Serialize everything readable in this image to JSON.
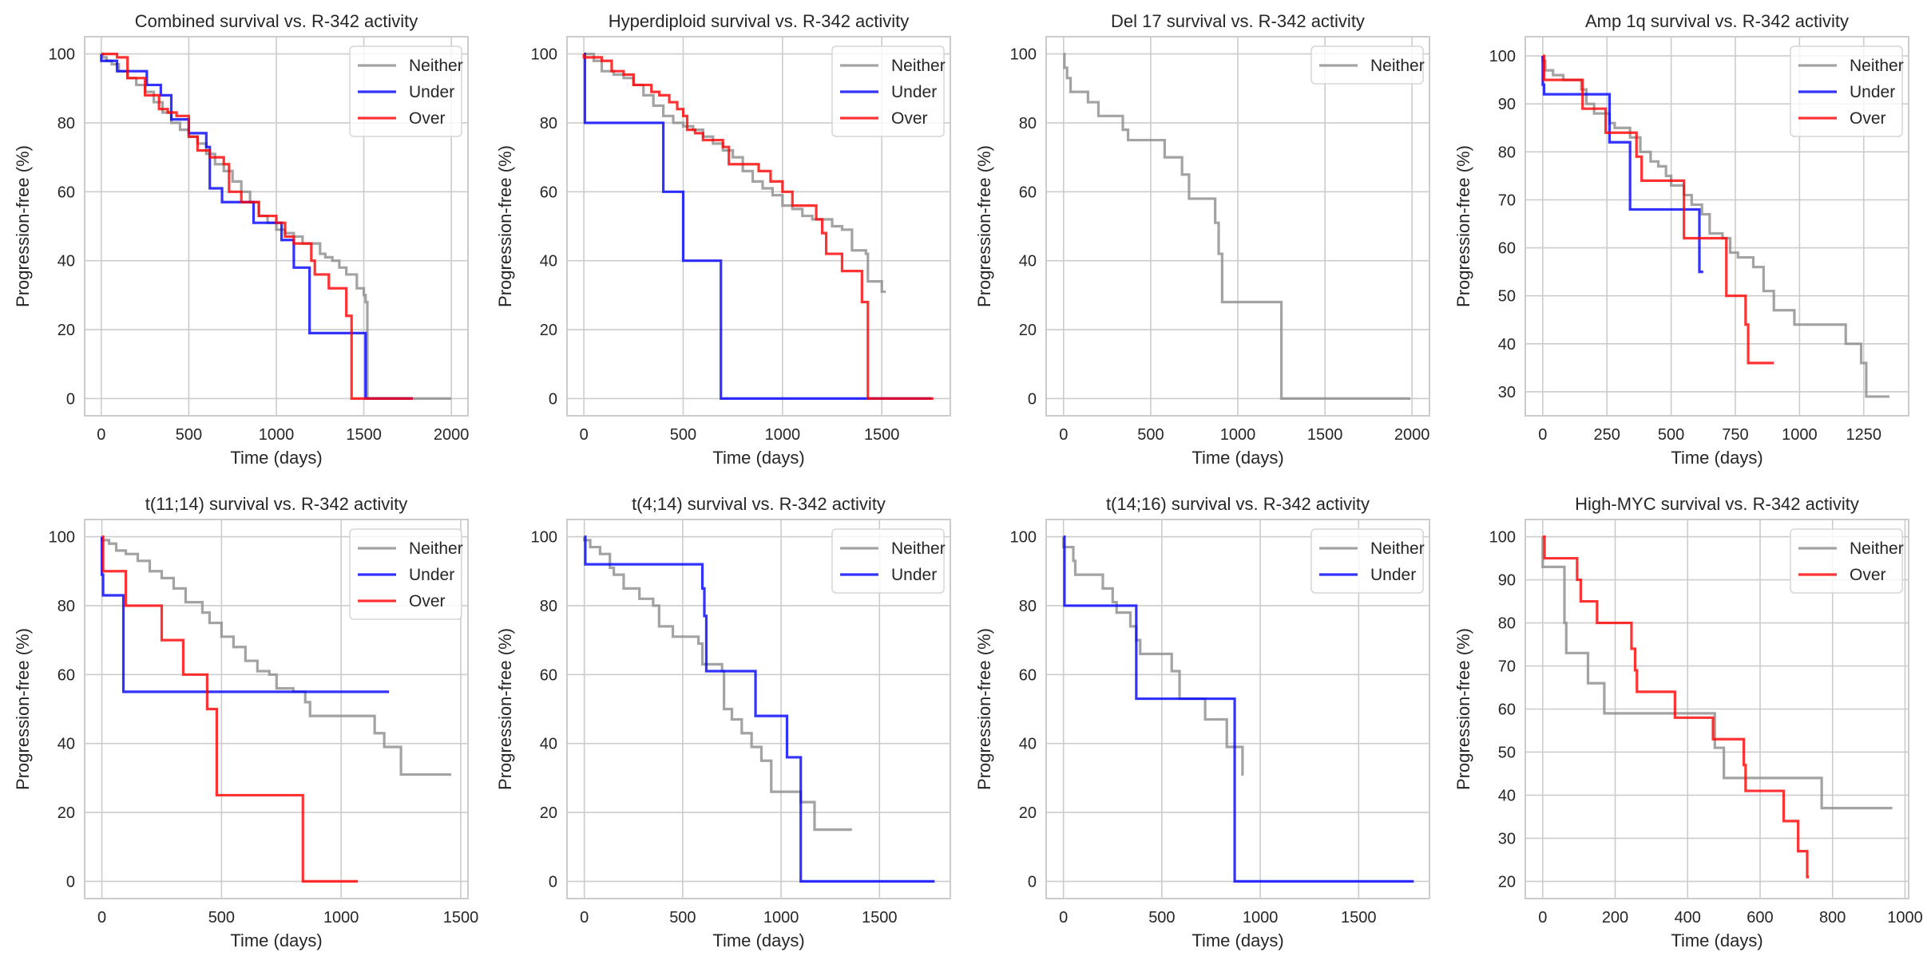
{
  "figure": {
    "colors": {
      "Neither": "#8c8c8c",
      "Under": "#0000ff",
      "Over": "#ff0000",
      "grid": "#cccccc",
      "spine": "#cccccc"
    },
    "xlabel": "Time (days)",
    "ylabel": "Progression-free (%)"
  },
  "chart_data": [
    {
      "type": "line",
      "title": "Combined survival vs. R-342 activity",
      "xlabel": "Time (days)",
      "ylabel": "Progression-free (%)",
      "xlim": [
        -95,
        2095
      ],
      "ylim": [
        -5,
        105
      ],
      "xticks": [
        0,
        500,
        1000,
        1500,
        2000
      ],
      "yticks": [
        0,
        20,
        40,
        60,
        80,
        100
      ],
      "grid": true,
      "legend": "top-right",
      "series": [
        {
          "name": "Neither",
          "x": [
            0,
            10,
            30,
            60,
            100,
            150,
            200,
            250,
            300,
            350,
            400,
            450,
            500,
            550,
            600,
            650,
            700,
            750,
            800,
            850,
            900,
            950,
            1000,
            1050,
            1100,
            1150,
            1200,
            1250,
            1280,
            1320,
            1360,
            1400,
            1420,
            1460,
            1500,
            1510,
            1520,
            1800,
            2000
          ],
          "y": [
            100,
            99,
            98,
            97,
            95,
            93,
            91,
            89,
            86,
            83,
            80,
            78,
            76,
            74,
            71,
            68,
            66,
            63,
            60,
            57,
            53,
            51,
            49,
            48,
            47,
            45,
            45,
            42,
            41,
            40,
            38,
            36,
            36,
            32,
            30,
            28,
            0,
            0,
            0
          ]
        },
        {
          "name": "Under",
          "x": [
            0,
            90,
            260,
            340,
            400,
            500,
            600,
            620,
            690,
            870,
            1030,
            1100,
            1190,
            1510,
            1780
          ],
          "y": [
            98,
            95,
            91,
            88,
            81,
            77,
            73,
            61,
            57,
            51,
            46,
            38,
            19,
            0,
            0
          ]
        },
        {
          "name": "Over",
          "x": [
            0,
            90,
            150,
            250,
            330,
            380,
            430,
            500,
            550,
            620,
            700,
            730,
            800,
            900,
            1000,
            1050,
            1100,
            1200,
            1220,
            1300,
            1400,
            1430,
            1780
          ],
          "y": [
            100,
            99,
            93,
            88,
            84,
            83,
            82,
            76,
            72,
            70,
            68,
            60,
            57,
            53,
            51,
            47,
            45,
            40,
            36,
            32,
            24,
            0,
            0
          ]
        }
      ]
    },
    {
      "type": "line",
      "title": "Hyperdiploid survival vs. R-342 activity",
      "xlabel": "Time (days)",
      "ylabel": "Progression-free (%)",
      "xlim": [
        -85,
        1845
      ],
      "ylim": [
        -5,
        105
      ],
      "xticks": [
        0,
        500,
        1000,
        1500
      ],
      "yticks": [
        0,
        20,
        40,
        60,
        80,
        100
      ],
      "grid": true,
      "legend": "top-right",
      "series": [
        {
          "name": "Neither",
          "x": [
            0,
            50,
            90,
            150,
            200,
            250,
            300,
            350,
            400,
            450,
            500,
            550,
            600,
            650,
            700,
            750,
            800,
            850,
            900,
            950,
            1000,
            1050,
            1100,
            1150,
            1200,
            1250,
            1300,
            1350,
            1420,
            1430,
            1500,
            1520
          ],
          "y": [
            100,
            98,
            95,
            94,
            93,
            91,
            88,
            85,
            82,
            80,
            79,
            78,
            76,
            74,
            72,
            70,
            66,
            63,
            61,
            59,
            56,
            55,
            53,
            52,
            52,
            50,
            49,
            43,
            42,
            34,
            31,
            31
          ]
        },
        {
          "name": "Under",
          "x": [
            0,
            5,
            400,
            500,
            690,
            1750
          ],
          "y": [
            100,
            80,
            60,
            40,
            0,
            0
          ]
        },
        {
          "name": "Over",
          "x": [
            0,
            90,
            140,
            200,
            250,
            340,
            380,
            430,
            470,
            500,
            520,
            560,
            600,
            700,
            730,
            880,
            940,
            1000,
            1050,
            1170,
            1200,
            1220,
            1300,
            1400,
            1430,
            1760
          ],
          "y": [
            99,
            98,
            95,
            94,
            91,
            89,
            88,
            86,
            84,
            82,
            78,
            77,
            75,
            73,
            68,
            66,
            63,
            60,
            56,
            52,
            48,
            42,
            37,
            28,
            0,
            0
          ]
        }
      ]
    },
    {
      "type": "line",
      "title": "Del 17 survival vs. R-342 activity",
      "xlabel": "Time (days)",
      "ylabel": "Progression-free (%)",
      "xlim": [
        -100,
        2100
      ],
      "ylim": [
        -5,
        105
      ],
      "xticks": [
        0,
        500,
        1000,
        1500,
        2000
      ],
      "yticks": [
        0,
        20,
        40,
        60,
        80,
        100
      ],
      "grid": true,
      "legend": "top-right",
      "series": [
        {
          "name": "Neither",
          "x": [
            0,
            5,
            20,
            40,
            140,
            200,
            340,
            370,
            580,
            680,
            720,
            870,
            890,
            910,
            1250,
            1990
          ],
          "y": [
            100,
            96,
            93,
            89,
            86,
            82,
            78,
            75,
            70,
            65,
            58,
            51,
            42,
            28,
            0,
            0
          ]
        }
      ]
    },
    {
      "type": "line",
      "title": "Amp 1q survival vs. R-342 activity",
      "xlabel": "Time (days)",
      "ylabel": "Progression-free (%)",
      "xlim": [
        -68,
        1425
      ],
      "ylim": [
        25,
        104
      ],
      "xticks": [
        0,
        250,
        500,
        750,
        1000,
        1250
      ],
      "yticks": [
        30,
        40,
        50,
        60,
        70,
        80,
        90,
        100
      ],
      "grid": true,
      "legend": "top-right",
      "series": [
        {
          "name": "Neither",
          "x": [
            0,
            10,
            40,
            80,
            150,
            170,
            200,
            260,
            280,
            340,
            380,
            420,
            450,
            480,
            500,
            550,
            580,
            620,
            650,
            700,
            730,
            760,
            820,
            860,
            900,
            980,
            1180,
            1240,
            1260,
            1350
          ],
          "y": [
            99,
            97,
            96,
            95,
            93,
            90,
            88,
            86,
            85,
            83,
            80,
            78,
            77,
            75,
            73,
            71,
            69,
            67,
            63,
            62,
            59,
            58,
            56,
            51,
            47,
            44,
            40,
            36,
            29,
            29
          ]
        },
        {
          "name": "Under",
          "x": [
            0,
            5,
            260,
            340,
            610,
            625
          ],
          "y": [
            94,
            92,
            82,
            68,
            55,
            55
          ]
        },
        {
          "name": "Over",
          "x": [
            0,
            5,
            155,
            245,
            365,
            385,
            550,
            715,
            790,
            800,
            900
          ],
          "y": [
            100,
            95,
            89,
            84,
            79,
            74,
            62,
            50,
            44,
            36,
            36
          ]
        }
      ]
    },
    {
      "type": "line",
      "title": "t(11;14) survival vs. R-342 activity",
      "xlabel": "Time (days)",
      "ylabel": "Progression-free (%)",
      "xlim": [
        -72,
        1530
      ],
      "ylim": [
        -5,
        105
      ],
      "xticks": [
        0,
        500,
        1000,
        1500
      ],
      "yticks": [
        0,
        20,
        40,
        60,
        80,
        100
      ],
      "grid": true,
      "legend": "top-right",
      "series": [
        {
          "name": "Neither",
          "x": [
            0,
            30,
            60,
            100,
            150,
            200,
            250,
            300,
            350,
            420,
            450,
            500,
            550,
            600,
            650,
            700,
            730,
            800,
            850,
            870,
            1140,
            1180,
            1250,
            1460
          ],
          "y": [
            99,
            98,
            96,
            95,
            93,
            90,
            88,
            85,
            81,
            78,
            75,
            71,
            68,
            64,
            61,
            60,
            56,
            55,
            52,
            48,
            43,
            39,
            31,
            31
          ]
        },
        {
          "name": "Under",
          "x": [
            0,
            5,
            90,
            1200
          ],
          "y": [
            89,
            83,
            55,
            55
          ]
        },
        {
          "name": "Over",
          "x": [
            0,
            5,
            100,
            250,
            340,
            440,
            480,
            840,
            1070
          ],
          "y": [
            100,
            90,
            80,
            70,
            60,
            50,
            25,
            0,
            0
          ]
        }
      ]
    },
    {
      "type": "line",
      "title": "t(4;14) survival vs. R-342 activity",
      "xlabel": "Time (days)",
      "ylabel": "Progression-free (%)",
      "xlim": [
        -88,
        1860
      ],
      "ylim": [
        -5,
        105
      ],
      "xticks": [
        0,
        500,
        1000,
        1500
      ],
      "yticks": [
        0,
        20,
        40,
        60,
        80,
        100
      ],
      "grid": true,
      "legend": "top-right",
      "series": [
        {
          "name": "Neither",
          "x": [
            0,
            30,
            80,
            130,
            150,
            200,
            280,
            350,
            380,
            450,
            580,
            600,
            700,
            710,
            750,
            800,
            850,
            900,
            950,
            1100,
            1170,
            1360
          ],
          "y": [
            99,
            97,
            95,
            91,
            89,
            85,
            82,
            80,
            74,
            71,
            69,
            63,
            61,
            50,
            47,
            43,
            39,
            35,
            26,
            23,
            15,
            15
          ]
        },
        {
          "name": "Under",
          "x": [
            0,
            5,
            600,
            610,
            620,
            870,
            1030,
            1100,
            1780
          ],
          "y": [
            100,
            92,
            85,
            77,
            61,
            48,
            36,
            0,
            0
          ]
        }
      ]
    },
    {
      "type": "line",
      "title": "t(14;16) survival vs. R-342 activity",
      "xlabel": "Time (days)",
      "ylabel": "Progression-free (%)",
      "xlim": [
        -88,
        1860
      ],
      "ylim": [
        -5,
        105
      ],
      "xticks": [
        0,
        500,
        1000,
        1500
      ],
      "yticks": [
        0,
        20,
        40,
        60,
        80,
        100
      ],
      "grid": true,
      "legend": "top-right",
      "series": [
        {
          "name": "Neither",
          "x": [
            0,
            50,
            60,
            200,
            250,
            270,
            340,
            370,
            390,
            550,
            590,
            720,
            830,
            910,
            915
          ],
          "y": [
            97,
            93,
            89,
            85,
            81,
            78,
            74,
            70,
            66,
            61,
            53,
            47,
            39,
            31,
            31
          ]
        },
        {
          "name": "Under",
          "x": [
            0,
            5,
            370,
            870,
            1780
          ],
          "y": [
            100,
            80,
            53,
            0,
            0
          ]
        }
      ]
    },
    {
      "type": "line",
      "title": "High-MYC survival vs. R-342 activity",
      "xlabel": "Time (days)",
      "ylabel": "Progression-free (%)",
      "xlim": [
        -48,
        1010
      ],
      "ylim": [
        16,
        104
      ],
      "xticks": [
        0,
        200,
        400,
        600,
        800,
        1000
      ],
      "yticks": [
        20,
        30,
        40,
        50,
        60,
        70,
        80,
        90,
        100
      ],
      "grid": true,
      "legend": "top-right",
      "series": [
        {
          "name": "Neither",
          "x": [
            0,
            60,
            65,
            125,
            170,
            475,
            500,
            770,
            965
          ],
          "y": [
            93,
            80,
            73,
            66,
            59,
            51,
            44,
            37,
            37
          ]
        },
        {
          "name": "Over",
          "x": [
            0,
            5,
            95,
            105,
            150,
            245,
            255,
            260,
            365,
            470,
            555,
            560,
            665,
            705,
            730,
            735
          ],
          "y": [
            100,
            95,
            90,
            85,
            80,
            74,
            69,
            64,
            58,
            53,
            47,
            41,
            34,
            27,
            21,
            21
          ]
        }
      ]
    }
  ]
}
